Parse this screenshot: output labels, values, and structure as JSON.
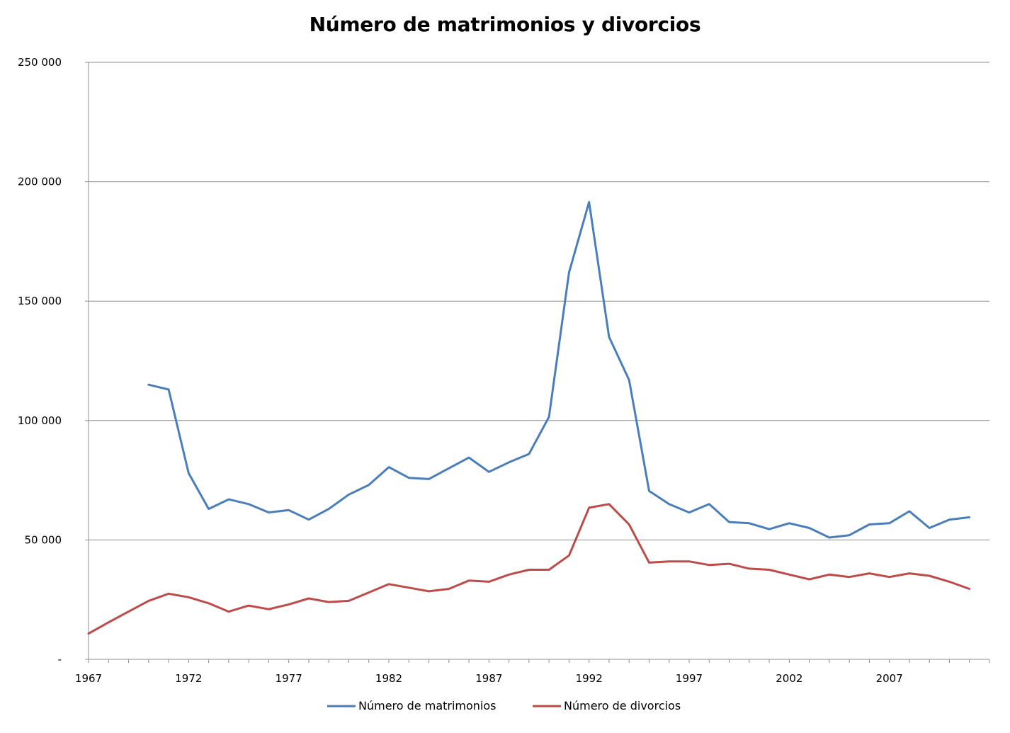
{
  "chart_data": {
    "type": "line",
    "title": "Número de matrimonios y divorcios",
    "xlabel": "",
    "ylabel": "",
    "x_tick_labels": [
      "1967",
      "1972",
      "1977",
      "1982",
      "1987",
      "1992",
      "1997",
      "2002",
      "2007"
    ],
    "y_tick_labels": [
      "-",
      "50 000",
      "100 000",
      "150 000",
      "200 000",
      "250 000"
    ],
    "ylim": [
      0,
      250000
    ],
    "xlim": [
      1967,
      2012
    ],
    "grid": "horizontal",
    "legend_position": "bottom",
    "series": [
      {
        "name": "Número de matrimonios",
        "color": "#4a7ebb",
        "points": [
          [
            1970,
            115000
          ],
          [
            1971,
            113000
          ],
          [
            1972,
            78000
          ],
          [
            1973,
            63000
          ],
          [
            1974,
            67000
          ],
          [
            1975,
            65000
          ],
          [
            1976,
            61500
          ],
          [
            1977,
            62500
          ],
          [
            1978,
            58500
          ],
          [
            1979,
            63000
          ],
          [
            1980,
            69000
          ],
          [
            1981,
            73000
          ],
          [
            1982,
            80500
          ],
          [
            1983,
            76000
          ],
          [
            1984,
            75500
          ],
          [
            1985,
            80000
          ],
          [
            1986,
            84500
          ],
          [
            1987,
            78500
          ],
          [
            1988,
            82500
          ],
          [
            1989,
            86000
          ],
          [
            1990,
            101500
          ],
          [
            1991,
            162000
          ],
          [
            1992,
            191500
          ],
          [
            1993,
            135000
          ],
          [
            1994,
            117000
          ],
          [
            1995,
            70500
          ],
          [
            1996,
            65000
          ],
          [
            1997,
            61500
          ],
          [
            1998,
            65000
          ],
          [
            1999,
            57500
          ],
          [
            2000,
            57000
          ],
          [
            2001,
            54500
          ],
          [
            2002,
            57000
          ],
          [
            2003,
            55000
          ],
          [
            2004,
            51000
          ],
          [
            2005,
            52000
          ],
          [
            2006,
            56500
          ],
          [
            2007,
            57000
          ],
          [
            2008,
            62000
          ],
          [
            2009,
            55000
          ],
          [
            2010,
            58500
          ],
          [
            2011,
            59500
          ]
        ]
      },
      {
        "name": "Número de divorcios",
        "color": "#be4b48",
        "points": [
          [
            1967,
            10800
          ],
          [
            1968,
            15500
          ],
          [
            1969,
            20000
          ],
          [
            1970,
            24500
          ],
          [
            1971,
            27500
          ],
          [
            1972,
            26000
          ],
          [
            1973,
            23500
          ],
          [
            1974,
            20000
          ],
          [
            1975,
            22500
          ],
          [
            1976,
            21000
          ],
          [
            1977,
            23000
          ],
          [
            1978,
            25500
          ],
          [
            1979,
            24000
          ],
          [
            1980,
            24500
          ],
          [
            1981,
            28000
          ],
          [
            1982,
            31500
          ],
          [
            1983,
            30000
          ],
          [
            1984,
            28500
          ],
          [
            1985,
            29500
          ],
          [
            1986,
            33000
          ],
          [
            1987,
            32500
          ],
          [
            1988,
            35500
          ],
          [
            1989,
            37500
          ],
          [
            1990,
            37500
          ],
          [
            1991,
            43500
          ],
          [
            1992,
            63500
          ],
          [
            1993,
            65000
          ],
          [
            1994,
            56500
          ],
          [
            1995,
            40500
          ],
          [
            1996,
            41000
          ],
          [
            1997,
            41000
          ],
          [
            1998,
            39500
          ],
          [
            1999,
            40000
          ],
          [
            2000,
            38000
          ],
          [
            2001,
            37500
          ],
          [
            2002,
            35500
          ],
          [
            2003,
            33500
          ],
          [
            2004,
            35500
          ],
          [
            2005,
            34500
          ],
          [
            2006,
            36000
          ],
          [
            2007,
            34500
          ],
          [
            2008,
            36000
          ],
          [
            2009,
            35000
          ],
          [
            2010,
            32500
          ],
          [
            2011,
            29500
          ]
        ]
      }
    ]
  }
}
